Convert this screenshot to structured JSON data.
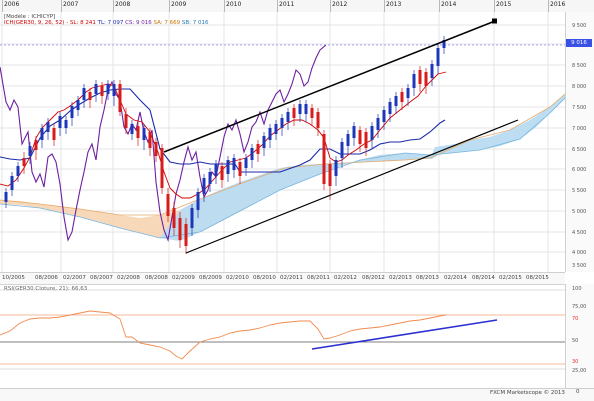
{
  "top_axis": {
    "years": [
      "2006",
      "2007",
      "2008",
      "2009",
      "2010",
      "2011",
      "2012",
      "2013",
      "2014",
      "2015",
      "2016"
    ]
  },
  "legend": {
    "model": "[Modèle : ICHICYP]",
    "line": {
      "prefix": "ICH(GER30, 9, 26, 52)",
      "sl": "- SL: 8 241",
      "tl": "TL: 7 097",
      "cs": "CS: 9 016",
      "sa": "SA: 7 669",
      "sb": "SB: 7 016"
    },
    "rsi": "RSI(GER30.Cloture, 21): 66,63",
    "colors": {
      "sl": "#d00000",
      "tl": "#1a2aa8",
      "cs": "#6f1fa0",
      "sa": "#c77500",
      "sb": "#1f77b4"
    }
  },
  "price_axis": {
    "ticks": [
      "9 500",
      "9 000",
      "8 500",
      "8 000",
      "7 500",
      "7 000",
      "6 500",
      "6 000",
      "5 500",
      "5 000",
      "4 500",
      "4 000",
      "3 500"
    ],
    "current": "9 016"
  },
  "date_axis": {
    "labels": [
      "10/2005",
      "08/2006",
      "02/2007",
      "08/2007",
      "02/2008",
      "08/2008",
      "02/2009",
      "08/2009",
      "02/2010",
      "08/2010",
      "02/2011",
      "08/2011",
      "02/2012",
      "08/2012",
      "02/2013",
      "08/2013",
      "02/2014",
      "08/2014",
      "02/2015",
      "08/2015"
    ]
  },
  "rsi_axis": {
    "ticks": [
      "100",
      "75,00",
      "70",
      "50",
      "30",
      "25,00"
    ]
  },
  "footer": {
    "credit": "FXCM Marketscope © 2013",
    "corner_label": "0"
  }
}
